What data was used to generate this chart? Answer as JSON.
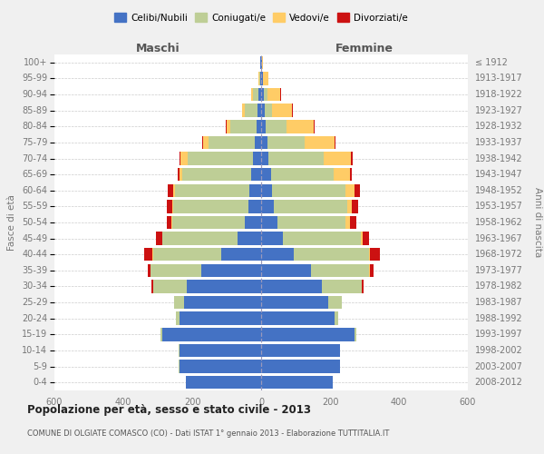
{
  "age_groups": [
    "100+",
    "95-99",
    "90-94",
    "85-89",
    "80-84",
    "75-79",
    "70-74",
    "65-69",
    "60-64",
    "55-59",
    "50-54",
    "45-49",
    "40-44",
    "35-39",
    "30-34",
    "25-29",
    "20-24",
    "15-19",
    "10-14",
    "5-9",
    "0-4"
  ],
  "birth_years": [
    "≤ 1912",
    "1913-1917",
    "1918-1922",
    "1923-1927",
    "1928-1932",
    "1933-1937",
    "1938-1942",
    "1943-1947",
    "1948-1952",
    "1953-1957",
    "1958-1962",
    "1963-1967",
    "1968-1972",
    "1973-1977",
    "1978-1982",
    "1983-1987",
    "1988-1992",
    "1993-1997",
    "1998-2002",
    "2003-2007",
    "2008-2012"
  ],
  "males_celibi": [
    2,
    3,
    8,
    10,
    12,
    18,
    25,
    28,
    35,
    38,
    48,
    68,
    115,
    175,
    215,
    225,
    238,
    288,
    238,
    238,
    218
  ],
  "males_coniugati": [
    0,
    2,
    15,
    38,
    78,
    135,
    188,
    200,
    215,
    218,
    210,
    218,
    198,
    145,
    98,
    28,
    10,
    5,
    2,
    2,
    0
  ],
  "males_vedovi": [
    0,
    2,
    5,
    8,
    10,
    15,
    20,
    10,
    5,
    3,
    2,
    2,
    2,
    0,
    0,
    0,
    0,
    0,
    0,
    0,
    0
  ],
  "males_divorziati": [
    0,
    0,
    0,
    0,
    2,
    3,
    5,
    5,
    15,
    15,
    15,
    18,
    25,
    8,
    5,
    0,
    0,
    0,
    0,
    0,
    0
  ],
  "females_nubili": [
    2,
    4,
    8,
    10,
    12,
    18,
    22,
    28,
    32,
    38,
    48,
    62,
    95,
    145,
    175,
    195,
    212,
    272,
    228,
    228,
    208
  ],
  "females_coniugate": [
    0,
    2,
    10,
    22,
    62,
    108,
    160,
    182,
    212,
    212,
    198,
    228,
    218,
    168,
    118,
    38,
    12,
    4,
    2,
    2,
    0
  ],
  "females_vedove": [
    2,
    14,
    38,
    58,
    78,
    88,
    78,
    48,
    28,
    13,
    13,
    4,
    4,
    4,
    0,
    0,
    0,
    0,
    0,
    0,
    0
  ],
  "females_divorziate": [
    0,
    0,
    2,
    2,
    3,
    3,
    5,
    5,
    14,
    18,
    18,
    18,
    28,
    8,
    4,
    0,
    0,
    0,
    0,
    0,
    0
  ],
  "colors_celibi": "#4472C4",
  "colors_coniugati": "#BECE96",
  "colors_vedovi": "#FFCC66",
  "colors_divorziati": "#CC1111",
  "xlim": 600,
  "title": "Popolazione per età, sesso e stato civile - 2013",
  "subtitle": "COMUNE DI OLGIATE COMASCO (CO) - Dati ISTAT 1° gennaio 2013 - Elaborazione TUTTITALIA.IT",
  "ylabel_left": "Fasce di età",
  "ylabel_right": "Anni di nascita",
  "xlabel_left": "Maschi",
  "xlabel_right": "Femmine",
  "legend_labels": [
    "Celibi/Nubili",
    "Coniugati/e",
    "Vedovi/e",
    "Divorziati/e"
  ],
  "bg_color": "#f0f0f0",
  "plot_bg": "#ffffff"
}
